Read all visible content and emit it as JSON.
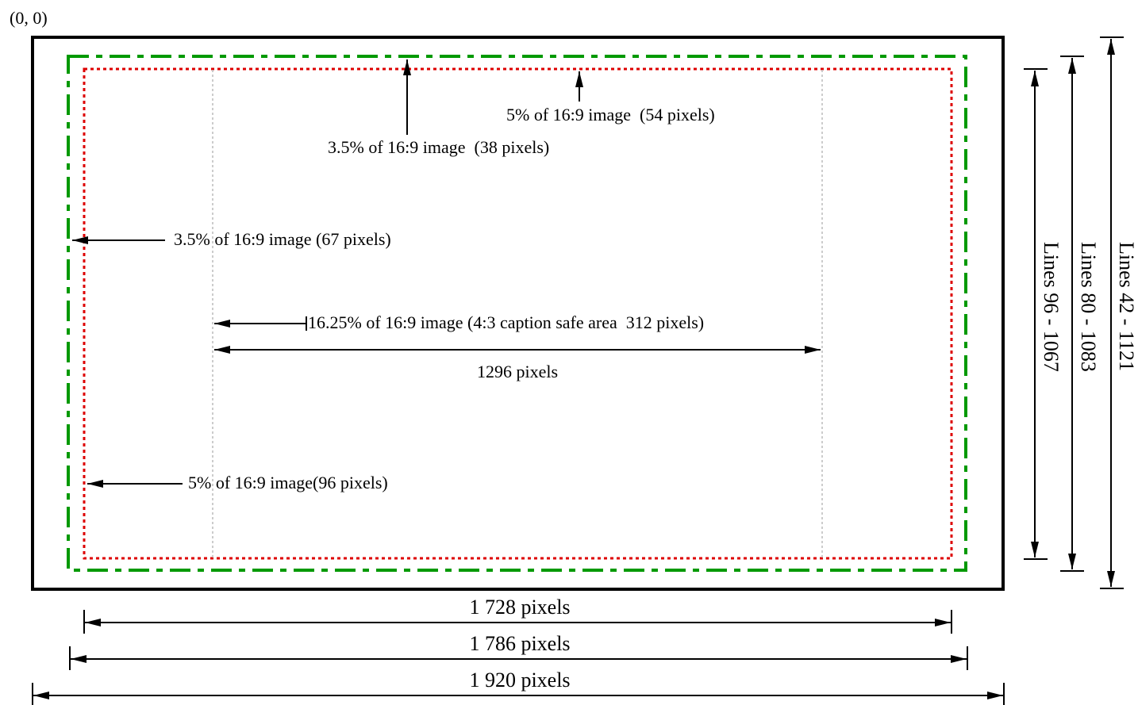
{
  "origin_label": "(0, 0)",
  "annotations": {
    "top_title_safe": "5% of 16:9 image  (54 pixels)",
    "top_action_safe": "3.5% of 16:9 image  (38 pixels)",
    "left_action_safe": "3.5% of 16:9 image (67 pixels)",
    "caption_safe": "16.25% of 16:9 image (4:3 caption safe area  312 pixels)",
    "caption_width": "1296 pixels",
    "left_title_safe": "5% of 16:9 image(96 pixels)"
  },
  "dimensions": {
    "width_title_safe": "1 728 pixels",
    "width_action_safe": "1 786 pixels",
    "width_full": "1 920 pixels",
    "lines_title_safe": "Lines 96 - 1067",
    "lines_action_safe": "Lines 80 - 1083",
    "lines_full": "Lines 42 - 1121"
  },
  "colors": {
    "frame": "#000000",
    "action_safe": "#009900",
    "title_safe": "#dd0000",
    "caption_guides": "#bbbbbb",
    "arrows": "#000000"
  }
}
